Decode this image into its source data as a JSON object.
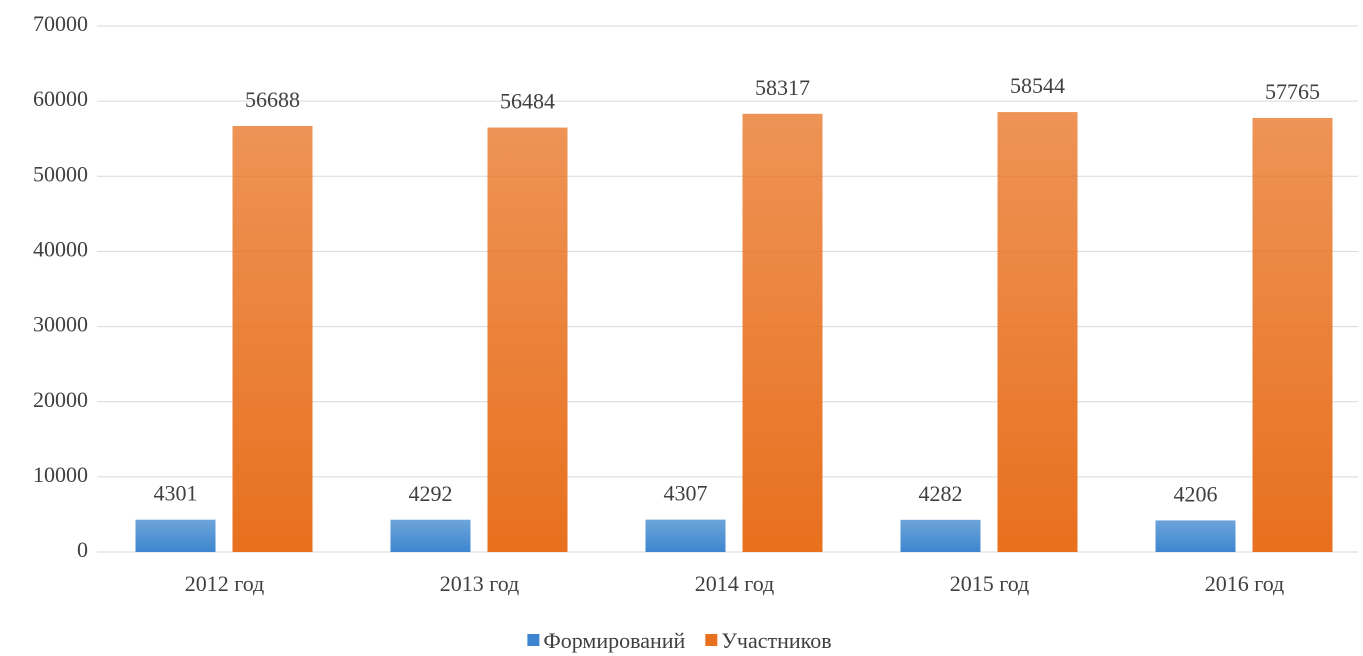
{
  "chart_data": {
    "type": "bar",
    "categories": [
      "2012 год",
      "2013 год",
      "2014 год",
      "2015 год",
      "2016 год"
    ],
    "series": [
      {
        "name": "Формирований",
        "color": "#3d86cf",
        "values": [
          4301,
          4292,
          4307,
          4282,
          4206
        ]
      },
      {
        "name": "Участников",
        "color": "#e8701e",
        "values": [
          56688,
          56484,
          58317,
          58544,
          57765
        ]
      }
    ],
    "ylim": [
      0,
      70000
    ],
    "yticks": [
      0,
      10000,
      20000,
      30000,
      40000,
      50000,
      60000,
      70000
    ],
    "grid": true,
    "legend": "bottom"
  }
}
